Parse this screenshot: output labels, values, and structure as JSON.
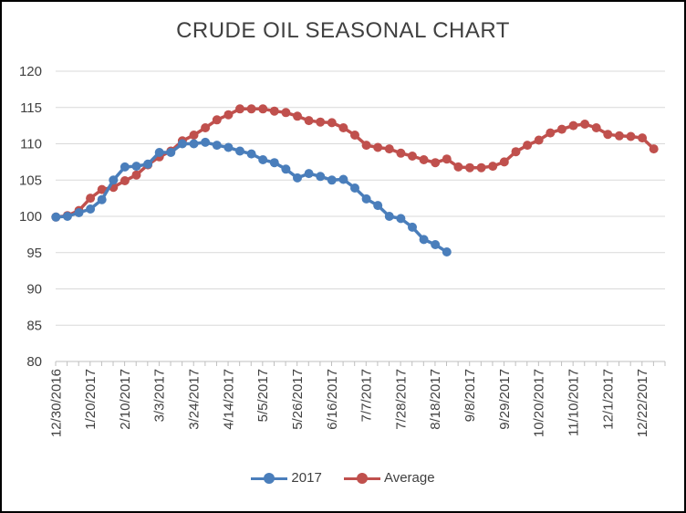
{
  "chart_data": {
    "type": "line",
    "title": "CRUDE OIL SEASONAL CHART",
    "xlabel": "",
    "ylabel": "",
    "ylim": [
      80,
      120
    ],
    "yticks": [
      "80",
      "85",
      "90",
      "95",
      "100",
      "105",
      "110",
      "115",
      "120"
    ],
    "grid": true,
    "legend_position": "bottom",
    "x_tick_labels": [
      "12/30/2016",
      "1/20/2017",
      "2/10/2017",
      "3/3/2017",
      "3/24/2017",
      "4/14/2017",
      "5/5/2017",
      "5/26/2017",
      "6/16/2017",
      "7/7/2017",
      "7/28/2017",
      "8/18/2017",
      "9/8/2017",
      "9/29/2017",
      "10/20/2017",
      "11/10/2017",
      "12/1/2017",
      "12/22/2017"
    ],
    "x_tick_week_index": [
      0,
      3,
      6,
      9,
      12,
      15,
      18,
      21,
      24,
      27,
      30,
      33,
      36,
      39,
      42,
      45,
      48,
      51
    ],
    "x_step": "weekly",
    "series": [
      {
        "name": "2017",
        "color": "#4A7EBB",
        "values": [
          99.9,
          100.0,
          100.5,
          101.0,
          102.3,
          105.0,
          106.8,
          106.9,
          107.2,
          108.8,
          108.8,
          110.0,
          110.0,
          110.2,
          109.8,
          109.5,
          109.0,
          108.6,
          107.8,
          107.4,
          106.5,
          105.3,
          105.9,
          105.5,
          105.0,
          105.1,
          103.9,
          102.4,
          101.5,
          100.0,
          99.7,
          98.5,
          96.8,
          96.1,
          95.1
        ]
      },
      {
        "name": "Average",
        "color": "#C0504D",
        "values": [
          99.9,
          100.1,
          100.8,
          102.5,
          103.7,
          104.0,
          104.9,
          105.7,
          107.1,
          108.2,
          109.0,
          110.4,
          111.2,
          112.2,
          113.3,
          114.0,
          114.8,
          114.8,
          114.8,
          114.5,
          114.3,
          113.8,
          113.2,
          113.0,
          112.9,
          112.2,
          111.2,
          109.8,
          109.5,
          109.3,
          108.7,
          108.3,
          107.8,
          107.4,
          107.9,
          106.8,
          106.7,
          106.7,
          106.9,
          107.5,
          108.9,
          109.8,
          110.5,
          111.5,
          112.0,
          112.5,
          112.7,
          112.2,
          111.3,
          111.1,
          111.0,
          110.8,
          109.3
        ]
      }
    ]
  }
}
